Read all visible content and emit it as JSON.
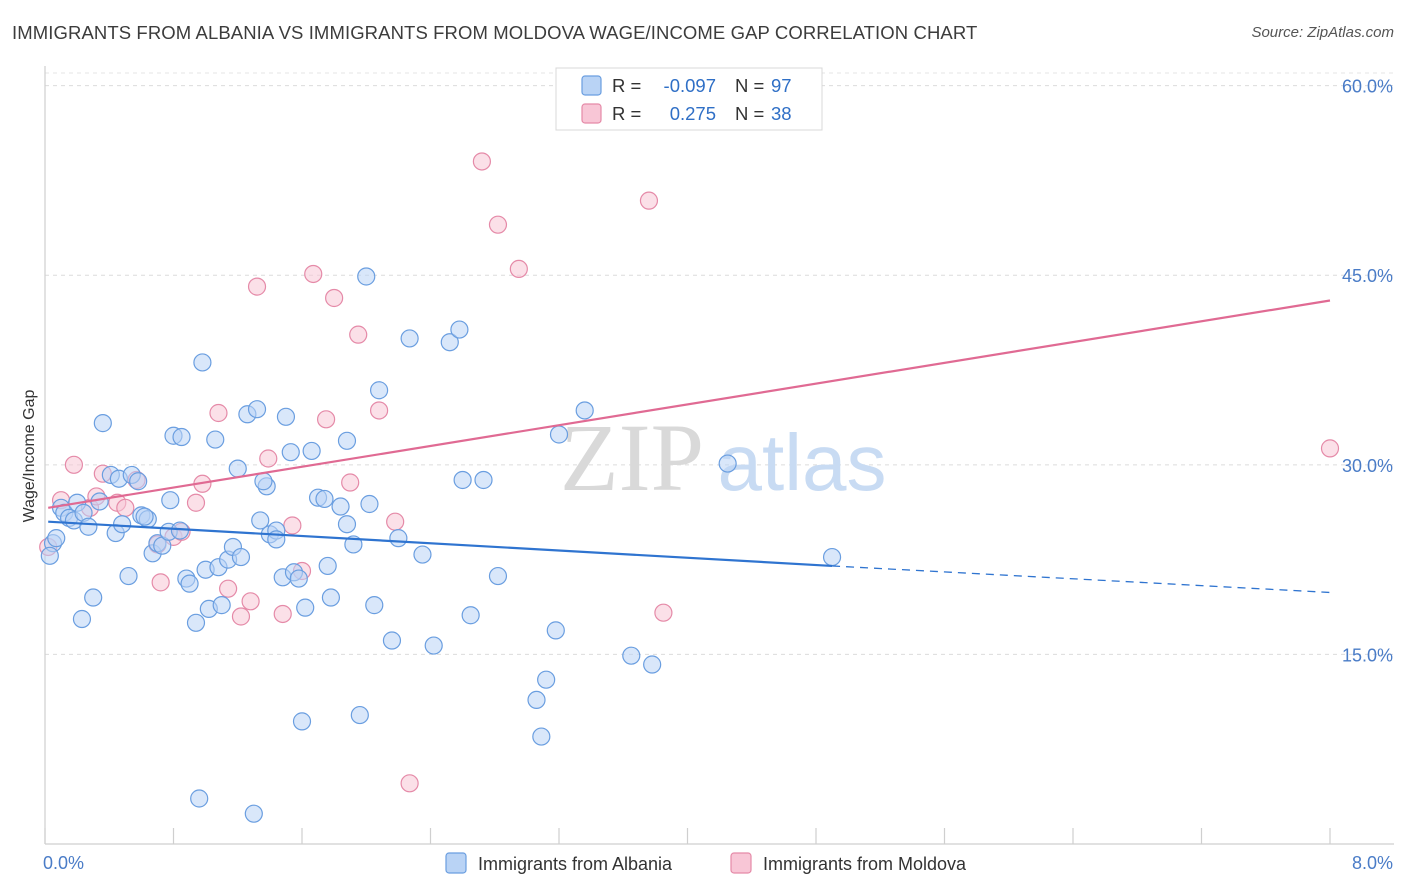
{
  "title": "IMMIGRANTS FROM ALBANIA VS IMMIGRANTS FROM MOLDOVA WAGE/INCOME GAP CORRELATION CHART",
  "source": "Source: ZipAtlas.com",
  "watermark": {
    "zip": "ZIP",
    "atlas": "atlas"
  },
  "legend": {
    "rows": [
      {
        "r_label": "R =",
        "r_value": "-0.097",
        "n_label": "N =",
        "n_value": "97",
        "fill": "#b9d3f5",
        "stroke": "#6a9ee0"
      },
      {
        "r_label": "R =",
        "r_value": "0.275",
        "n_label": "N =",
        "n_value": "38",
        "fill": "#f8c6d6",
        "stroke": "#e58aa8"
      }
    ]
  },
  "bottom_legend": [
    {
      "label": "Immigrants from Albania",
      "fill": "#b9d3f5",
      "stroke": "#6a9ee0"
    },
    {
      "label": "Immigrants from Moldova",
      "fill": "#f8c6d6",
      "stroke": "#e58aa8"
    }
  ],
  "chart_data": {
    "type": "scatter",
    "title": "IMMIGRANTS FROM ALBANIA VS IMMIGRANTS FROM MOLDOVA WAGE/INCOME GAP CORRELATION CHART",
    "xlabel": "",
    "ylabel": "Wage/Income Gap",
    "xlim": [
      0,
      8
    ],
    "ylim": [
      0,
      61
    ],
    "x_tick_labels": [
      "0.0%",
      "8.0%"
    ],
    "y_ticks": [
      15,
      30,
      45,
      60
    ],
    "y_tick_labels": [
      "15.0%",
      "30.0%",
      "45.0%",
      "60.0%"
    ],
    "grid": true,
    "legend_position": "top-center",
    "colors": {
      "albania": "#2f74d0",
      "moldova": "#e06a93"
    },
    "series": [
      {
        "name": "Immigrants from Albania",
        "color": "#2f74d0",
        "trend": {
          "x": [
            0.02,
            4.9
          ],
          "y": [
            25.5,
            22.0
          ],
          "dashed_to": [
            8.0,
            19.9
          ]
        },
        "points": [
          {
            "x": 0.05,
            "y": 23.8
          },
          {
            "x": 0.07,
            "y": 24.2
          },
          {
            "x": 0.1,
            "y": 26.6
          },
          {
            "x": 0.12,
            "y": 26.2
          },
          {
            "x": 0.15,
            "y": 25.8
          },
          {
            "x": 0.18,
            "y": 25.6
          },
          {
            "x": 0.2,
            "y": 27.0
          },
          {
            "x": 0.24,
            "y": 26.2
          },
          {
            "x": 0.27,
            "y": 25.1
          },
          {
            "x": 0.3,
            "y": 19.5
          },
          {
            "x": 0.23,
            "y": 17.8
          },
          {
            "x": 0.34,
            "y": 27.1
          },
          {
            "x": 0.36,
            "y": 33.3
          },
          {
            "x": 0.41,
            "y": 29.2
          },
          {
            "x": 0.44,
            "y": 24.6
          },
          {
            "x": 0.46,
            "y": 28.9
          },
          {
            "x": 0.48,
            "y": 25.3
          },
          {
            "x": 0.52,
            "y": 21.2
          },
          {
            "x": 0.54,
            "y": 29.2
          },
          {
            "x": 0.58,
            "y": 28.7
          },
          {
            "x": 0.6,
            "y": 26.0
          },
          {
            "x": 0.64,
            "y": 25.7
          },
          {
            "x": 0.67,
            "y": 23.0
          },
          {
            "x": 0.7,
            "y": 23.8
          },
          {
            "x": 0.73,
            "y": 23.6
          },
          {
            "x": 0.77,
            "y": 24.7
          },
          {
            "x": 0.78,
            "y": 27.2
          },
          {
            "x": 0.8,
            "y": 32.3
          },
          {
            "x": 0.84,
            "y": 24.8
          },
          {
            "x": 0.85,
            "y": 32.2
          },
          {
            "x": 0.88,
            "y": 21.0
          },
          {
            "x": 0.9,
            "y": 20.6
          },
          {
            "x": 0.94,
            "y": 17.5
          },
          {
            "x": 0.98,
            "y": 38.1
          },
          {
            "x": 1.0,
            "y": 21.7
          },
          {
            "x": 1.02,
            "y": 18.6
          },
          {
            "x": 1.06,
            "y": 32.0
          },
          {
            "x": 1.08,
            "y": 21.9
          },
          {
            "x": 1.1,
            "y": 18.9
          },
          {
            "x": 1.14,
            "y": 22.5
          },
          {
            "x": 1.17,
            "y": 23.5
          },
          {
            "x": 1.2,
            "y": 29.7
          },
          {
            "x": 1.22,
            "y": 22.7
          },
          {
            "x": 1.26,
            "y": 34.0
          },
          {
            "x": 1.32,
            "y": 34.4
          },
          {
            "x": 1.34,
            "y": 25.6
          },
          {
            "x": 1.38,
            "y": 28.3
          },
          {
            "x": 1.4,
            "y": 24.5
          },
          {
            "x": 1.44,
            "y": 24.8
          },
          {
            "x": 1.44,
            "y": 24.1
          },
          {
            "x": 1.48,
            "y": 21.1
          },
          {
            "x": 1.5,
            "y": 33.8
          },
          {
            "x": 1.53,
            "y": 31.0
          },
          {
            "x": 1.55,
            "y": 21.5
          },
          {
            "x": 1.58,
            "y": 21.0
          },
          {
            "x": 1.62,
            "y": 18.7
          },
          {
            "x": 1.66,
            "y": 31.1
          },
          {
            "x": 1.7,
            "y": 27.4
          },
          {
            "x": 1.74,
            "y": 27.3
          },
          {
            "x": 1.76,
            "y": 22.0
          },
          {
            "x": 1.78,
            "y": 19.5
          },
          {
            "x": 1.84,
            "y": 26.7
          },
          {
            "x": 1.88,
            "y": 31.9
          },
          {
            "x": 1.88,
            "y": 25.3
          },
          {
            "x": 1.92,
            "y": 23.7
          },
          {
            "x": 2.0,
            "y": 44.9
          },
          {
            "x": 2.05,
            "y": 18.9
          },
          {
            "x": 2.08,
            "y": 35.9
          },
          {
            "x": 2.16,
            "y": 16.1
          },
          {
            "x": 2.2,
            "y": 24.2
          },
          {
            "x": 2.27,
            "y": 40.0
          },
          {
            "x": 2.35,
            "y": 22.9
          },
          {
            "x": 2.42,
            "y": 15.7
          },
          {
            "x": 2.52,
            "y": 39.7
          },
          {
            "x": 2.58,
            "y": 40.7
          },
          {
            "x": 2.6,
            "y": 28.8
          },
          {
            "x": 2.65,
            "y": 18.1
          },
          {
            "x": 2.73,
            "y": 28.8
          },
          {
            "x": 2.82,
            "y": 21.2
          },
          {
            "x": 3.06,
            "y": 11.4
          },
          {
            "x": 3.09,
            "y": 8.5
          },
          {
            "x": 3.12,
            "y": 13.0
          },
          {
            "x": 3.18,
            "y": 16.9
          },
          {
            "x": 3.2,
            "y": 32.4
          },
          {
            "x": 3.36,
            "y": 34.3
          },
          {
            "x": 3.65,
            "y": 14.9
          },
          {
            "x": 3.78,
            "y": 14.2
          },
          {
            "x": 4.25,
            "y": 30.1
          },
          {
            "x": 4.9,
            "y": 22.7
          },
          {
            "x": 1.6,
            "y": 9.7
          },
          {
            "x": 1.96,
            "y": 10.2
          },
          {
            "x": 0.96,
            "y": 3.6
          },
          {
            "x": 1.3,
            "y": 2.4
          },
          {
            "x": 0.03,
            "y": 22.8
          },
          {
            "x": 1.36,
            "y": 28.7
          },
          {
            "x": 2.02,
            "y": 26.9
          },
          {
            "x": 0.62,
            "y": 25.9
          }
        ]
      },
      {
        "name": "Immigrants from Moldova",
        "color": "#e06a93",
        "trend": {
          "x": [
            0.02,
            8.0
          ],
          "y": [
            26.6,
            43.0
          ]
        },
        "points": [
          {
            "x": 0.02,
            "y": 23.5
          },
          {
            "x": 0.1,
            "y": 27.2
          },
          {
            "x": 0.18,
            "y": 30.0
          },
          {
            "x": 0.28,
            "y": 26.6
          },
          {
            "x": 0.32,
            "y": 27.5
          },
          {
            "x": 0.36,
            "y": 29.3
          },
          {
            "x": 0.45,
            "y": 27.0
          },
          {
            "x": 0.5,
            "y": 26.6
          },
          {
            "x": 0.57,
            "y": 28.8
          },
          {
            "x": 0.7,
            "y": 23.7
          },
          {
            "x": 0.72,
            "y": 20.7
          },
          {
            "x": 0.8,
            "y": 24.3
          },
          {
            "x": 0.85,
            "y": 24.7
          },
          {
            "x": 0.94,
            "y": 27.0
          },
          {
            "x": 0.98,
            "y": 28.5
          },
          {
            "x": 1.08,
            "y": 34.1
          },
          {
            "x": 1.14,
            "y": 20.2
          },
          {
            "x": 1.22,
            "y": 18.0
          },
          {
            "x": 1.28,
            "y": 19.2
          },
          {
            "x": 1.32,
            "y": 44.1
          },
          {
            "x": 1.39,
            "y": 30.5
          },
          {
            "x": 1.48,
            "y": 18.2
          },
          {
            "x": 1.54,
            "y": 25.2
          },
          {
            "x": 1.6,
            "y": 21.6
          },
          {
            "x": 1.67,
            "y": 45.1
          },
          {
            "x": 1.75,
            "y": 33.6
          },
          {
            "x": 1.8,
            "y": 43.2
          },
          {
            "x": 1.9,
            "y": 28.6
          },
          {
            "x": 1.95,
            "y": 40.3
          },
          {
            "x": 2.08,
            "y": 34.3
          },
          {
            "x": 2.18,
            "y": 25.5
          },
          {
            "x": 2.27,
            "y": 4.8
          },
          {
            "x": 2.72,
            "y": 54.0
          },
          {
            "x": 2.82,
            "y": 49.0
          },
          {
            "x": 2.95,
            "y": 45.5
          },
          {
            "x": 3.76,
            "y": 50.9
          },
          {
            "x": 3.85,
            "y": 18.3
          },
          {
            "x": 8.0,
            "y": 31.3
          }
        ]
      }
    ]
  }
}
